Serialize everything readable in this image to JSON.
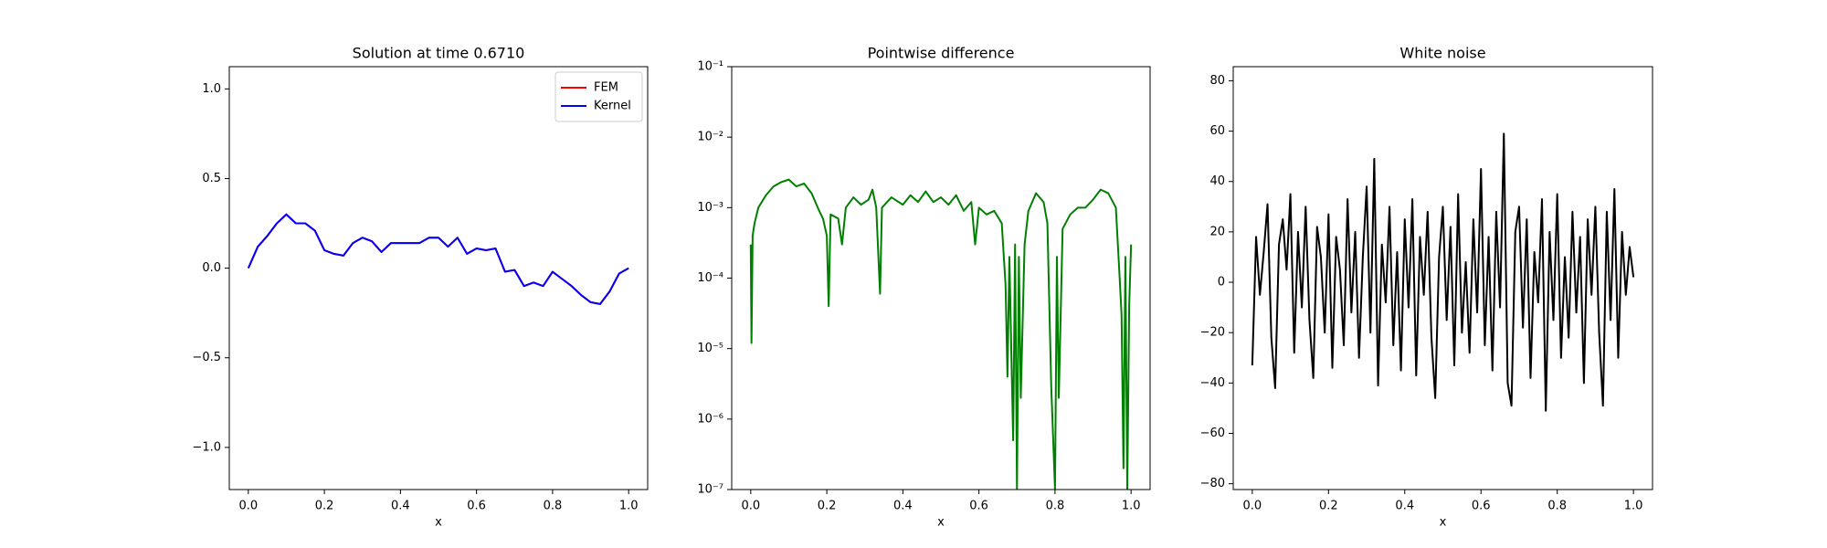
{
  "chart_data": [
    {
      "type": "line",
      "title": "Solution at time 0.6710",
      "xlabel": "x",
      "legend": "upper right",
      "xlim": [
        -0.05,
        1.05
      ],
      "ylim": [
        -1.235,
        1.124
      ],
      "xticks": [
        {
          "value": 0,
          "label": "0.0"
        },
        {
          "value": 0.2,
          "label": "0.2"
        },
        {
          "value": 0.4,
          "label": "0.4"
        },
        {
          "value": 0.6,
          "label": "0.6"
        },
        {
          "value": 0.8,
          "label": "0.8"
        },
        {
          "value": 1,
          "label": "1.0"
        }
      ],
      "yticks": [
        {
          "value": -1,
          "label": "−1.0"
        },
        {
          "value": -0.5,
          "label": "−0.5"
        },
        {
          "value": 0,
          "label": "0.0"
        },
        {
          "value": 0.5,
          "label": "0.5"
        },
        {
          "value": 1,
          "label": "1.0"
        }
      ],
      "x": [
        0,
        0.025,
        0.05,
        0.075,
        0.1,
        0.125,
        0.15,
        0.175,
        0.2,
        0.225,
        0.25,
        0.275,
        0.3,
        0.325,
        0.35,
        0.375,
        0.4,
        0.425,
        0.45,
        0.475,
        0.5,
        0.525,
        0.55,
        0.575,
        0.6,
        0.625,
        0.65,
        0.675,
        0.7,
        0.725,
        0.75,
        0.775,
        0.8,
        0.825,
        0.85,
        0.875,
        0.9,
        0.925,
        0.95,
        0.975,
        1
      ],
      "series": [
        {
          "name": "FEM",
          "color": "#ff0000",
          "values": [
            0,
            0.12,
            0.18,
            0.25,
            0.3,
            0.25,
            0.25,
            0.21,
            0.1,
            0.08,
            0.07,
            0.14,
            0.17,
            0.15,
            0.09,
            0.14,
            0.14,
            0.14,
            0.14,
            0.17,
            0.17,
            0.12,
            0.17,
            0.08,
            0.11,
            0.1,
            0.11,
            -0.02,
            -0.01,
            -0.1,
            -0.08,
            -0.1,
            -0.02,
            -0.06,
            -0.1,
            -0.15,
            -0.19,
            -0.2,
            -0.13,
            -0.03,
            0
          ]
        },
        {
          "name": "Kernel",
          "color": "#0000ff",
          "values": [
            0,
            0.12,
            0.18,
            0.25,
            0.3,
            0.25,
            0.25,
            0.21,
            0.1,
            0.08,
            0.07,
            0.14,
            0.17,
            0.15,
            0.09,
            0.14,
            0.14,
            0.14,
            0.14,
            0.17,
            0.17,
            0.12,
            0.17,
            0.08,
            0.11,
            0.1,
            0.11,
            -0.02,
            -0.01,
            -0.1,
            -0.08,
            -0.1,
            -0.02,
            -0.06,
            -0.1,
            -0.15,
            -0.19,
            -0.2,
            -0.13,
            -0.03,
            0
          ]
        }
      ]
    },
    {
      "type": "line",
      "title": "Pointwise difference",
      "xlabel": "x",
      "yscale": "log",
      "xlim": [
        -0.05,
        1.05
      ],
      "ylim": [
        1e-07,
        0.1
      ],
      "xticks": [
        {
          "value": 0,
          "label": "0.0"
        },
        {
          "value": 0.2,
          "label": "0.2"
        },
        {
          "value": 0.4,
          "label": "0.4"
        },
        {
          "value": 0.6,
          "label": "0.6"
        },
        {
          "value": 0.8,
          "label": "0.8"
        },
        {
          "value": 1,
          "label": "1.0"
        }
      ],
      "yticks": [
        {
          "value": 1e-07,
          "label": "10⁻⁷"
        },
        {
          "value": 1e-06,
          "label": "10⁻⁶"
        },
        {
          "value": 1e-05,
          "label": "10⁻⁵"
        },
        {
          "value": 0.0001,
          "label": "10⁻⁴"
        },
        {
          "value": 0.001,
          "label": "10⁻³"
        },
        {
          "value": 0.01,
          "label": "10⁻²"
        },
        {
          "value": 0.1,
          "label": "10⁻¹"
        }
      ],
      "x": [
        0,
        0.002,
        0.005,
        0.01,
        0.02,
        0.04,
        0.06,
        0.08,
        0.1,
        0.12,
        0.14,
        0.16,
        0.18,
        0.19,
        0.2,
        0.205,
        0.21,
        0.23,
        0.24,
        0.25,
        0.27,
        0.29,
        0.31,
        0.32,
        0.33,
        0.34,
        0.345,
        0.37,
        0.4,
        0.42,
        0.44,
        0.46,
        0.48,
        0.5,
        0.52,
        0.54,
        0.56,
        0.58,
        0.59,
        0.6,
        0.62,
        0.64,
        0.66,
        0.67,
        0.675,
        0.68,
        0.69,
        0.695,
        0.7,
        0.705,
        0.71,
        0.72,
        0.73,
        0.75,
        0.77,
        0.78,
        0.79,
        0.8,
        0.805,
        0.81,
        0.82,
        0.84,
        0.86,
        0.88,
        0.9,
        0.92,
        0.94,
        0.96,
        0.97,
        0.975,
        0.98,
        0.985,
        0.99,
        0.995,
        1
      ],
      "series": [
        {
          "color": "#008000",
          "values": [
            0.0003,
            1.2e-05,
            0.0004,
            0.0006,
            0.001,
            0.0015,
            0.002,
            0.0023,
            0.0025,
            0.002,
            0.0022,
            0.0016,
            0.0009,
            0.0007,
            0.0004,
            4e-05,
            0.0008,
            0.0007,
            0.0003,
            0.001,
            0.0014,
            0.0011,
            0.0013,
            0.0018,
            0.001,
            6e-05,
            0.001,
            0.0014,
            0.0011,
            0.0015,
            0.0012,
            0.0017,
            0.0012,
            0.0014,
            0.0011,
            0.0015,
            0.0009,
            0.0012,
            0.0003,
            0.001,
            0.0008,
            0.0009,
            0.0006,
            8e-05,
            4e-06,
            0.0002,
            5e-07,
            0.0003,
            1e-07,
            0.0002,
            2e-06,
            0.0003,
            0.0009,
            0.0016,
            0.0012,
            0.0006,
            3e-06,
            1e-07,
            0.0002,
            2e-06,
            0.0005,
            0.0008,
            0.001,
            0.001,
            0.0013,
            0.0018,
            0.0016,
            0.001,
            0.0001,
            3e-05,
            2e-07,
            0.0002,
            1e-07,
            4e-05,
            0.0003
          ]
        }
      ]
    },
    {
      "type": "line",
      "title": "White noise",
      "xlabel": "x",
      "xlim": [
        -0.05,
        1.05
      ],
      "ylim": [
        -82.3,
        85.6
      ],
      "xticks": [
        {
          "value": 0,
          "label": "0.0"
        },
        {
          "value": 0.2,
          "label": "0.2"
        },
        {
          "value": 0.4,
          "label": "0.4"
        },
        {
          "value": 0.6,
          "label": "0.6"
        },
        {
          "value": 0.8,
          "label": "0.8"
        },
        {
          "value": 1,
          "label": "1.0"
        }
      ],
      "yticks": [
        {
          "value": -80,
          "label": "−80"
        },
        {
          "value": -60,
          "label": "−60"
        },
        {
          "value": -40,
          "label": "−40"
        },
        {
          "value": -20,
          "label": "−20"
        },
        0,
        20,
        40,
        60,
        80
      ],
      "x": [
        0,
        0.01,
        0.02,
        0.03,
        0.04,
        0.05,
        0.06,
        0.07,
        0.08,
        0.09,
        0.1,
        0.11,
        0.12,
        0.13,
        0.14,
        0.15,
        0.16,
        0.17,
        0.18,
        0.19,
        0.2,
        0.21,
        0.22,
        0.23,
        0.24,
        0.25,
        0.26,
        0.27,
        0.28,
        0.29,
        0.3,
        0.31,
        0.32,
        0.33,
        0.34,
        0.35,
        0.36,
        0.37,
        0.38,
        0.39,
        0.4,
        0.41,
        0.42,
        0.43,
        0.44,
        0.45,
        0.46,
        0.47,
        0.48,
        0.49,
        0.5,
        0.51,
        0.52,
        0.53,
        0.54,
        0.55,
        0.56,
        0.57,
        0.58,
        0.59,
        0.6,
        0.61,
        0.62,
        0.63,
        0.64,
        0.65,
        0.66,
        0.67,
        0.68,
        0.69,
        0.7,
        0.71,
        0.72,
        0.73,
        0.74,
        0.75,
        0.76,
        0.77,
        0.78,
        0.79,
        0.8,
        0.81,
        0.82,
        0.83,
        0.84,
        0.85,
        0.86,
        0.87,
        0.88,
        0.89,
        0.9,
        0.91,
        0.92,
        0.93,
        0.94,
        0.95,
        0.96,
        0.97,
        0.98,
        0.99,
        1
      ],
      "series": [
        {
          "color": "#000000",
          "values": [
            -33,
            18,
            -5,
            12,
            31,
            -22,
            -42,
            15,
            25,
            5,
            35,
            -28,
            20,
            -10,
            30,
            -15,
            -38,
            22,
            10,
            -20,
            27,
            -34,
            18,
            5,
            -25,
            33,
            -12,
            20,
            -30,
            10,
            38,
            -20,
            49,
            -41,
            15,
            -8,
            30,
            -25,
            12,
            -35,
            25,
            -10,
            33,
            -37,
            18,
            -5,
            28,
            -22,
            -46,
            10,
            30,
            -15,
            22,
            -33,
            35,
            -20,
            8,
            -28,
            25,
            -12,
            45,
            -25,
            18,
            -35,
            28,
            -10,
            59,
            -40,
            -49,
            20,
            30,
            -18,
            25,
            -38,
            12,
            -8,
            33,
            -51,
            20,
            -15,
            35,
            -30,
            10,
            -22,
            28,
            -12,
            18,
            -40,
            25,
            -5,
            30,
            -20,
            -49,
            28,
            -15,
            37,
            -30,
            20,
            -5,
            14,
            2
          ]
        }
      ]
    }
  ]
}
